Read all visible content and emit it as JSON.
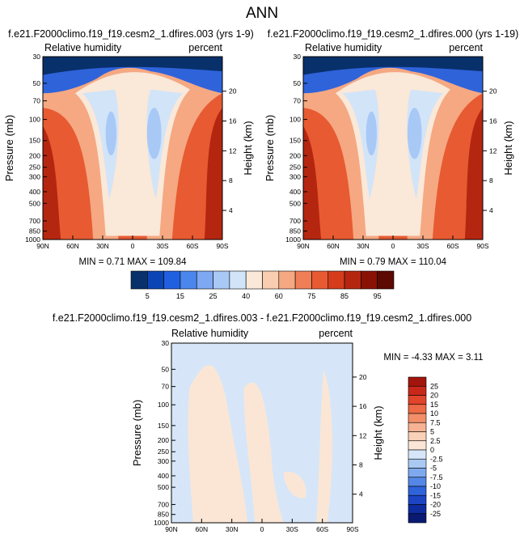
{
  "page_title": "ANN",
  "panels": [
    {
      "title": "f.e21.F2000climo.f19_f19.cesm2_1.dfires.003 (yrs 1-9)",
      "left_label": "Relative humidity",
      "right_label": "percent",
      "minmax": "MIN =  0.71   MAX = 109.84"
    },
    {
      "title": "f.e21.F2000climo.f19_f19.cesm2_1.dfires.000 (yrs 1-19)",
      "left_label": "Relative humidity",
      "right_label": "percent",
      "minmax": "MIN =  0.79   MAX = 110.04"
    },
    {
      "title": "f.e21.F2000climo.f19_f19.cesm2_1.dfires.003 - f.e21.F2000climo.f19_f19.cesm2_1.dfires.000",
      "left_label": "Relative humidity",
      "right_label": "percent",
      "minmax": "MIN = -4.33   MAX =  3.11"
    }
  ],
  "axes": {
    "ylabel": "Pressure (mb)",
    "y2label": "Height (km)",
    "x_ticks": [
      "90N",
      "60N",
      "30N",
      "0",
      "30S",
      "60S",
      "90S"
    ],
    "y_ticks": [
      "30",
      "50",
      "70",
      "100",
      "150",
      "200",
      "250",
      "300",
      "400",
      "500",
      "700",
      "850",
      "1000"
    ],
    "y2_ticks": [
      "20",
      "16",
      "12",
      "8",
      "4"
    ]
  },
  "colorbar_top": {
    "labels": [
      "5",
      "15",
      "25",
      "40",
      "60",
      "75",
      "85",
      "95"
    ],
    "colors": [
      "#08306b",
      "#0b45b5",
      "#2060e0",
      "#4a86ec",
      "#7ea8f2",
      "#a8c8f6",
      "#d2e4f8",
      "#fae8d8",
      "#f9cdb0",
      "#f5a882",
      "#f07e57",
      "#e85a32",
      "#d43c1a",
      "#b52610",
      "#8a1205",
      "#5c0a02"
    ]
  },
  "colorbar_diff": {
    "labels": [
      "25",
      "20",
      "15",
      "10",
      "7.5",
      "5",
      "2.5",
      "0",
      "-2.5",
      "-5",
      "-7.5",
      "-10",
      "-15",
      "-20",
      "-25"
    ],
    "colors": [
      "#a3150c",
      "#c8281a",
      "#e0442a",
      "#ec6a45",
      "#f28f68",
      "#f6b293",
      "#f9d0b8",
      "#fbe6d6",
      "#d6e6f8",
      "#aac9f2",
      "#7fa9ee",
      "#5587e6",
      "#2f63da",
      "#1c44c4",
      "#0f2c9e",
      "#0a1a72"
    ]
  },
  "field_colors": {
    "deep_blue": "#08306b",
    "blue": "#2f63da",
    "light_blue": "#d2e4f8",
    "mid_blue": "#a8c8f6",
    "peach": "#fae8d8",
    "light_red": "#f5a882",
    "red": "#e85a32",
    "dark_red": "#b52610",
    "diff_blue": "#d6e6f8",
    "diff_peach": "#fbe6d6"
  },
  "chart_data": [
    {
      "type": "heatmap",
      "title": "f.e21.F2000climo.f19_f19.cesm2_1.dfires.003 (yrs 1-9)",
      "variable": "Relative humidity",
      "units": "percent",
      "x": [
        "90N",
        "60N",
        "30N",
        "0",
        "30S",
        "60S",
        "90S"
      ],
      "y_pressure_mb": [
        30,
        50,
        70,
        100,
        150,
        200,
        250,
        300,
        400,
        500,
        700,
        850,
        1000
      ],
      "y2_height_km": [
        20,
        16,
        12,
        8,
        4
      ],
      "min": 0.71,
      "max": 109.84,
      "contour_levels": [
        5,
        10,
        15,
        20,
        25,
        30,
        40,
        50,
        60,
        65,
        70,
        75,
        80,
        85,
        90,
        95
      ]
    },
    {
      "type": "heatmap",
      "title": "f.e21.F2000climo.f19_f19.cesm2_1.dfires.000 (yrs 1-19)",
      "variable": "Relative humidity",
      "units": "percent",
      "x": [
        "90N",
        "60N",
        "30N",
        "0",
        "30S",
        "60S",
        "90S"
      ],
      "y_pressure_mb": [
        30,
        50,
        70,
        100,
        150,
        200,
        250,
        300,
        400,
        500,
        700,
        850,
        1000
      ],
      "y2_height_km": [
        20,
        16,
        12,
        8,
        4
      ],
      "min": 0.79,
      "max": 110.04,
      "contour_levels": [
        5,
        10,
        15,
        20,
        25,
        30,
        40,
        50,
        60,
        65,
        70,
        75,
        80,
        85,
        90,
        95
      ]
    },
    {
      "type": "heatmap",
      "title": "f.e21.F2000climo.f19_f19.cesm2_1.dfires.003 - f.e21.F2000climo.f19_f19.cesm2_1.dfires.000",
      "variable": "Relative humidity",
      "units": "percent",
      "x": [
        "90N",
        "60N",
        "30N",
        "0",
        "30S",
        "60S",
        "90S"
      ],
      "y_pressure_mb": [
        30,
        50,
        70,
        100,
        150,
        200,
        250,
        300,
        400,
        500,
        700,
        850,
        1000
      ],
      "y2_height_km": [
        20,
        16,
        12,
        8,
        4
      ],
      "min": -4.33,
      "max": 3.11,
      "contour_levels": [
        -25,
        -20,
        -15,
        -10,
        -7.5,
        -5,
        -2.5,
        0,
        2.5,
        5,
        7.5,
        10,
        15,
        20,
        25
      ]
    }
  ]
}
